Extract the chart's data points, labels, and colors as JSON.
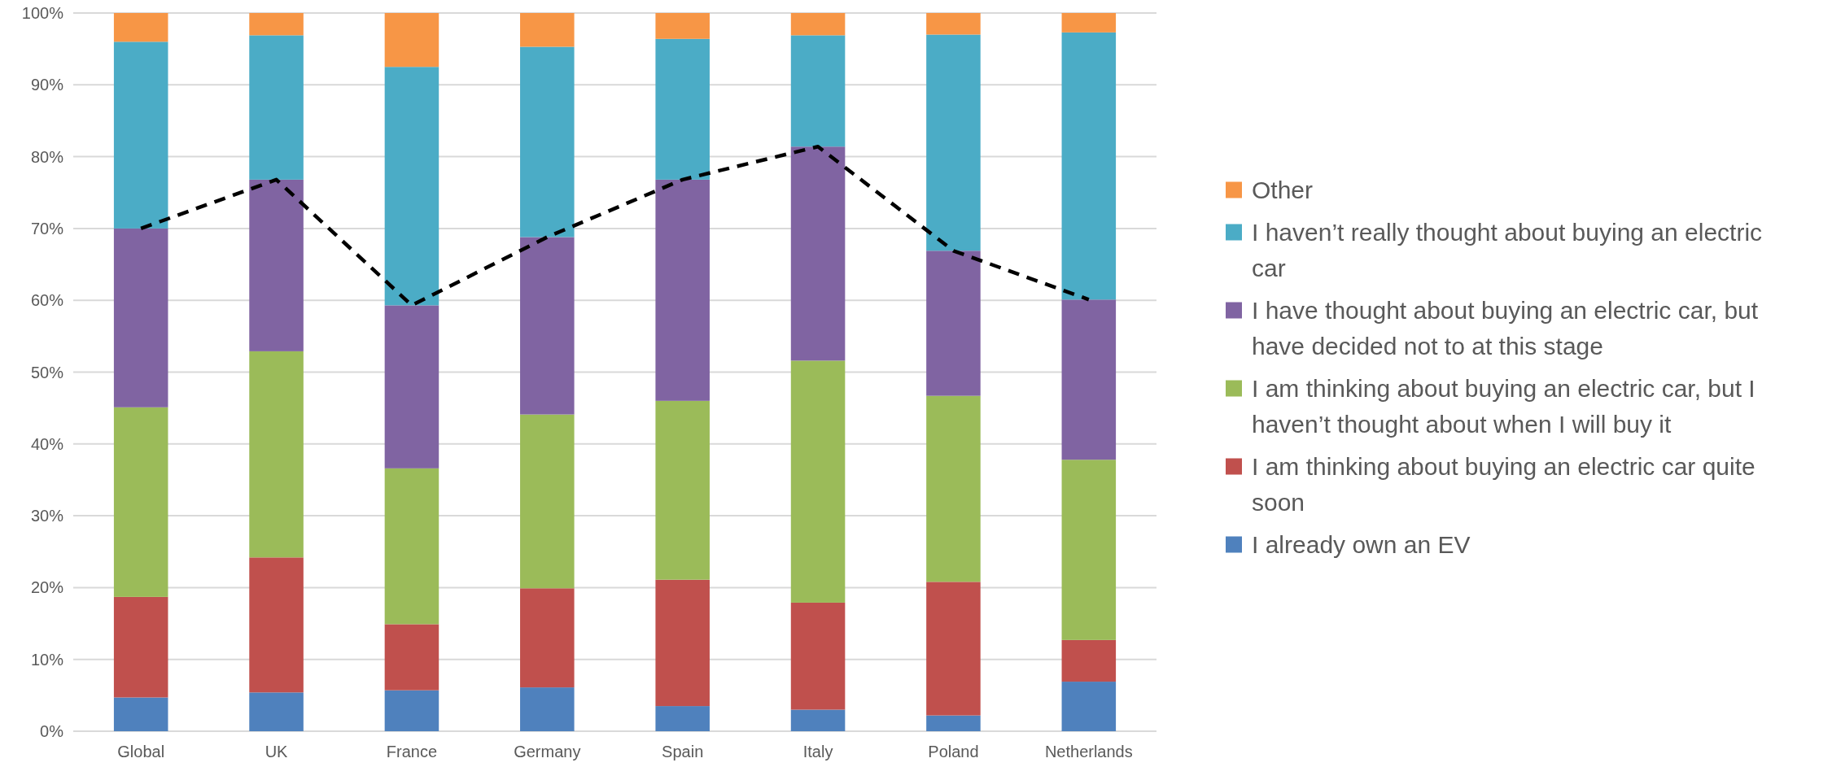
{
  "chart_data": {
    "type": "bar",
    "stacked": true,
    "categories": [
      "Global",
      "UK",
      "France",
      "Germany",
      "Spain",
      "Italy",
      "Poland",
      "Netherlands"
    ],
    "series": [
      {
        "name": "I already own an EV",
        "color": "#4f81bd",
        "values": [
          4.7,
          5.4,
          5.7,
          6.1,
          3.5,
          3.0,
          2.2,
          6.9
        ]
      },
      {
        "name": "I am thinking about buying an electric car quite soon",
        "color": "#c0504d",
        "values": [
          14.0,
          18.8,
          9.2,
          13.8,
          17.6,
          14.9,
          18.6,
          5.8
        ]
      },
      {
        "name": "I am thinking about buying an electric car, but I haven’t thought about when I will buy it",
        "color": "#9bbb59",
        "values": [
          26.4,
          28.7,
          21.7,
          24.2,
          24.9,
          33.7,
          25.9,
          25.1
        ]
      },
      {
        "name": "I have thought about buying an electric car, but have decided not to at this stage",
        "color": "#8064a2",
        "values": [
          24.9,
          23.9,
          22.7,
          24.7,
          30.8,
          29.8,
          20.2,
          22.3
        ]
      },
      {
        "name": "I haven’t really thought about buying an electric car",
        "color": "#4bacc6",
        "values": [
          26.0,
          20.1,
          33.2,
          26.5,
          19.6,
          15.5,
          30.1,
          37.2
        ]
      },
      {
        "name": "Other",
        "color": "#f79646",
        "values": [
          4.0,
          3.1,
          7.5,
          4.7,
          3.6,
          3.1,
          3.0,
          2.7
        ]
      },
      {
        "type": "line",
        "color": "#000000",
        "line_style": "dashed",
        "marker": "none",
        "values": [
          70.0,
          76.8,
          59.3,
          68.8,
          76.8,
          81.4,
          66.9,
          60.1
        ]
      }
    ],
    "ylim": [
      0,
      100
    ],
    "yticks": [
      {
        "value": 0,
        "label": "0%"
      },
      {
        "value": 10,
        "label": "10%"
      },
      {
        "value": 20,
        "label": "20%"
      },
      {
        "value": 30,
        "label": "30%"
      },
      {
        "value": 40,
        "label": "40%"
      },
      {
        "value": 50,
        "label": "50%"
      },
      {
        "value": 60,
        "label": "60%"
      },
      {
        "value": 70,
        "label": "70%"
      },
      {
        "value": 80,
        "label": "80%"
      },
      {
        "value": 90,
        "label": "90%"
      },
      {
        "value": 100,
        "label": "100%"
      }
    ],
    "grid": "y",
    "legend": "right"
  }
}
